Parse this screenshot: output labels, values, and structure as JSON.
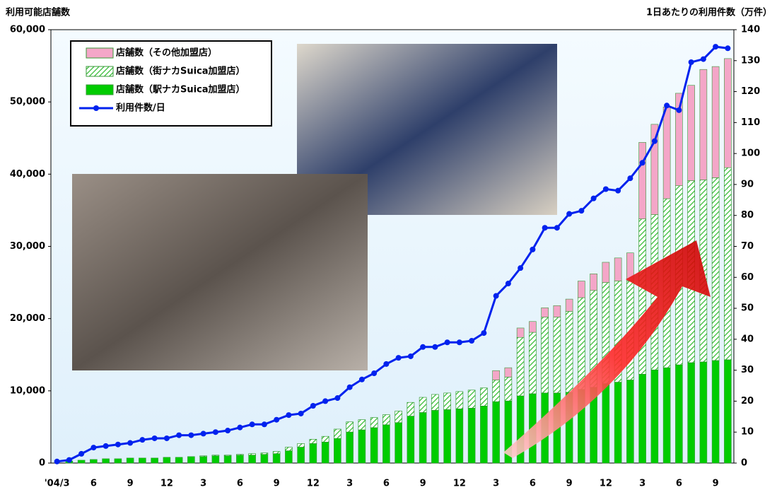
{
  "chart_data": {
    "type": "bar-line",
    "y_label": "利用可能店舗数",
    "y2_label": "1日あたりの利用件数（万件）",
    "categories": [
      "'04/3",
      null,
      null,
      "6",
      null,
      null,
      "9",
      null,
      null,
      "12",
      null,
      null,
      "3",
      null,
      null,
      "6",
      null,
      null,
      "9",
      null,
      null,
      "12",
      null,
      null,
      "3",
      null,
      null,
      "6",
      null,
      null,
      "9",
      null,
      null,
      "12",
      null,
      null,
      "3",
      null,
      null,
      "6",
      null,
      null,
      "9",
      null,
      null,
      "12",
      null,
      null,
      "3",
      null,
      null,
      "6",
      null,
      null,
      "9",
      null
    ],
    "ylim": [
      0,
      60000
    ],
    "yticks": [
      0,
      {
        "value": 10000,
        "label": "10,000"
      },
      {
        "value": 20000,
        "label": "20,000"
      },
      {
        "value": 30000,
        "label": "30,000"
      },
      {
        "value": 40000,
        "label": "40,000"
      },
      {
        "value": 50000,
        "label": "50,000"
      },
      {
        "value": 60000,
        "label": "60,000"
      }
    ],
    "y2lim": [
      0,
      140
    ],
    "y2ticks": [
      0,
      10,
      20,
      30,
      40,
      50,
      60,
      70,
      80,
      90,
      100,
      110,
      120,
      130,
      140
    ],
    "series": [
      {
        "name": "店舗数（駅ナカSuica加盟店）",
        "color": "#00cc00",
        "values": [
          0,
          300,
          400,
          500,
          600,
          600,
          700,
          700,
          700,
          800,
          800,
          900,
          900,
          1000,
          1000,
          1100,
          1100,
          1200,
          1300,
          1700,
          2200,
          2700,
          2900,
          3400,
          4300,
          4600,
          4900,
          5300,
          5600,
          6500,
          7000,
          7300,
          7400,
          7500,
          7600,
          7900,
          8500,
          8600,
          9300,
          9600,
          9700,
          9700,
          9800,
          10200,
          10500,
          11000,
          11200,
          11500,
          12300,
          12900,
          13200,
          13600,
          13900,
          14000,
          14200,
          14300
        ]
      },
      {
        "name": "店舗数（街ナカSuica加盟店）",
        "color": "#33bb33",
        "values": [
          0,
          0,
          0,
          0,
          0,
          0,
          0,
          0,
          0,
          0,
          0,
          0,
          100,
          100,
          100,
          100,
          200,
          200,
          300,
          500,
          500,
          600,
          800,
          1300,
          1400,
          1400,
          1400,
          1400,
          1600,
          1900,
          2100,
          2200,
          2300,
          2400,
          2500,
          2500,
          3000,
          3300,
          8100,
          8500,
          10500,
          10500,
          11200,
          12700,
          13400,
          14000,
          14000,
          13700,
          21500,
          21500,
          23400,
          24800,
          25200,
          25200,
          25300,
          26600
        ]
      },
      {
        "name": "店舗数（その他加盟店）",
        "color": "#f4a6c8",
        "values": [
          0,
          0,
          0,
          0,
          0,
          0,
          0,
          0,
          0,
          0,
          0,
          0,
          0,
          0,
          0,
          0,
          0,
          0,
          0,
          0,
          0,
          0,
          0,
          0,
          0,
          0,
          0,
          0,
          0,
          0,
          0,
          0,
          0,
          0,
          0,
          0,
          1300,
          1300,
          1300,
          1500,
          1300,
          1600,
          1700,
          2300,
          2300,
          2800,
          3200,
          3900,
          10600,
          12500,
          12700,
          12800,
          13200,
          15300,
          15400,
          15100
        ]
      },
      {
        "name": "利用件数/日",
        "color": "#0022ee",
        "axis": "y2",
        "values": [
          0.5,
          1,
          3,
          5,
          5.5,
          6,
          6.5,
          7.5,
          8,
          8,
          9,
          9,
          9.5,
          10,
          10.5,
          11.5,
          12.5,
          12.5,
          14,
          15.5,
          16,
          18.5,
          20,
          21,
          24.5,
          27,
          29,
          32,
          34,
          34.5,
          37.5,
          37.5,
          39,
          39,
          39.5,
          42,
          54,
          58,
          63,
          69,
          76,
          76,
          80.5,
          81.5,
          85.5,
          88.5,
          88,
          92,
          97,
          104,
          115.5,
          114,
          129.5,
          130.5,
          134.5,
          134
        ]
      }
    ]
  }
}
